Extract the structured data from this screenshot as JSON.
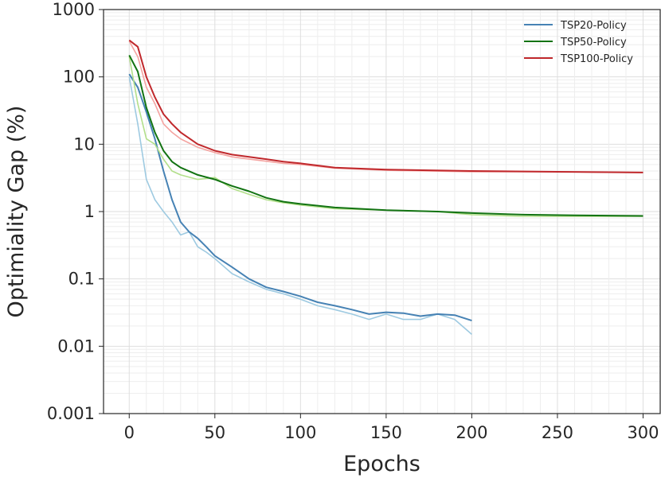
{
  "chart_data": {
    "type": "line",
    "title": "",
    "xlabel": "Epochs",
    "ylabel": "Optimiality Gap (%)",
    "xlim": [
      -15,
      310
    ],
    "ylim": [
      0.001,
      1000
    ],
    "yscale": "log",
    "x_ticks": [
      0,
      50,
      100,
      150,
      200,
      250,
      300
    ],
    "x_tick_labels": [
      "0",
      "50",
      "100",
      "150",
      "200",
      "250",
      "300"
    ],
    "y_ticks": [
      0.001,
      0.01,
      0.1,
      1,
      10,
      100,
      1000
    ],
    "y_tick_labels": [
      "0.001",
      "0.01",
      "0.1",
      "1",
      "10",
      "100",
      "1000"
    ],
    "grid": true,
    "legend_position": "top-right",
    "series": [
      {
        "name": "TSP20-Policy",
        "color": "#4682b4",
        "raw_color": "#9ecae1",
        "x": [
          0,
          5,
          10,
          15,
          20,
          25,
          30,
          35,
          40,
          45,
          50,
          60,
          70,
          80,
          90,
          100,
          110,
          120,
          130,
          140,
          150,
          160,
          170,
          180,
          190,
          200
        ],
        "values": [
          110,
          70,
          30,
          12,
          4,
          1.5,
          0.7,
          0.5,
          0.4,
          0.3,
          0.22,
          0.15,
          0.1,
          0.075,
          0.065,
          0.055,
          0.045,
          0.04,
          0.035,
          0.03,
          0.032,
          0.031,
          0.028,
          0.03,
          0.029,
          0.024
        ],
        "raw": [
          100,
          20,
          3,
          1.5,
          1,
          0.7,
          0.45,
          0.5,
          0.3,
          0.25,
          0.2,
          0.12,
          0.09,
          0.07,
          0.06,
          0.05,
          0.04,
          0.035,
          0.03,
          0.025,
          0.03,
          0.025,
          0.025,
          0.03,
          0.025,
          0.015
        ]
      },
      {
        "name": "TSP50-Policy",
        "color": "#127312",
        "raw_color": "#b2df8a",
        "x": [
          0,
          5,
          10,
          15,
          20,
          25,
          30,
          40,
          50,
          60,
          70,
          80,
          90,
          100,
          120,
          150,
          180,
          200,
          230,
          260,
          300
        ],
        "values": [
          210,
          120,
          35,
          15,
          8,
          5.5,
          4.5,
          3.5,
          3,
          2.4,
          2,
          1.6,
          1.4,
          1.3,
          1.15,
          1.05,
          1,
          0.95,
          0.9,
          0.88,
          0.86
        ],
        "raw": [
          200,
          40,
          12,
          10,
          6,
          4,
          3.5,
          3,
          3.2,
          2.2,
          1.8,
          1.5,
          1.35,
          1.25,
          1.1,
          1.05,
          1,
          0.9,
          0.85,
          0.85,
          0.85
        ]
      },
      {
        "name": "TSP100-Policy",
        "color": "#c0282c",
        "raw_color": "#f4a3a0",
        "x": [
          0,
          5,
          10,
          15,
          20,
          25,
          30,
          40,
          50,
          60,
          70,
          80,
          90,
          100,
          120,
          150,
          200,
          250,
          300
        ],
        "values": [
          350,
          280,
          100,
          50,
          28,
          20,
          15,
          10,
          8,
          7,
          6.5,
          6,
          5.5,
          5.2,
          4.5,
          4.2,
          4,
          3.9,
          3.8
        ],
        "raw": [
          340,
          200,
          70,
          40,
          20,
          15,
          12,
          9,
          7.5,
          6.5,
          6,
          5.6,
          5.2,
          5,
          4.4,
          4.1,
          3.9,
          3.9,
          3.8
        ]
      }
    ]
  }
}
